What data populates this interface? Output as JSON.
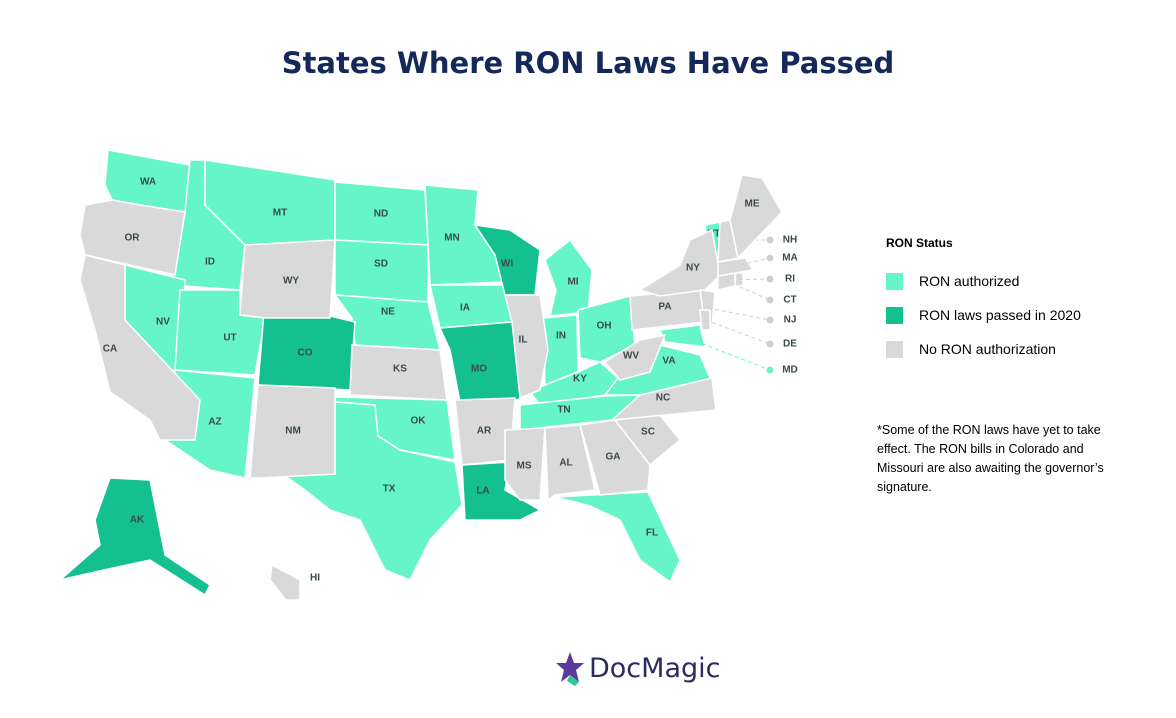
{
  "title": "States Where RON Laws Have Passed",
  "legend": {
    "title": "RON Status",
    "items": [
      {
        "label": "RON authorized",
        "color": "#66f5c9",
        "states": [
          "WA",
          "ID",
          "MT",
          "ND",
          "SD",
          "NE",
          "MN",
          "IA",
          "NV",
          "UT",
          "AZ",
          "OK",
          "TX",
          "MI",
          "IN",
          "OH",
          "KY",
          "TN",
          "VA",
          "FL",
          "VT",
          "MD"
        ]
      },
      {
        "label": "RON laws passed in 2020",
        "color": "#14c08f",
        "states": [
          "CO",
          "MO",
          "WI",
          "LA",
          "AK"
        ]
      },
      {
        "label": "No RON authorization",
        "color": "#d9d9d9",
        "states": [
          "OR",
          "CA",
          "WY",
          "NM",
          "KS",
          "AR",
          "IL",
          "MS",
          "AL",
          "GA",
          "SC",
          "NC",
          "WV",
          "PA",
          "NY",
          "NJ",
          "DE",
          "CT",
          "RI",
          "MA",
          "NH",
          "ME",
          "HI"
        ]
      }
    ]
  },
  "note": "*Some of the RON laws have yet to take effect. The RON bills in Colorado and Missouri are also awaiting the governor’s signature.",
  "logo": "DocMagic"
}
